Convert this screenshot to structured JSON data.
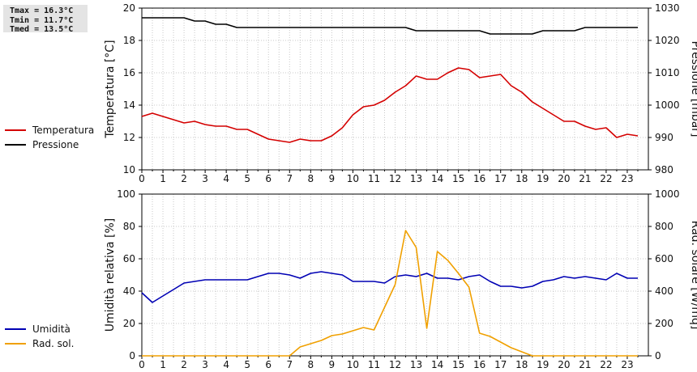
{
  "stats": {
    "tmax": "Tmax = 16.3°C",
    "tmin": "Tmin = 11.7°C",
    "tmed": "Tmed = 13.5°C"
  },
  "colors": {
    "temperature": "#d40000",
    "pressure": "#000000",
    "humidity": "#0000b4",
    "solar": "#f0a000",
    "grid": "#c8c8c8"
  },
  "legend_top": [
    {
      "label": "Temperatura",
      "color": "#d40000"
    },
    {
      "label": "Pressione",
      "color": "#000000"
    }
  ],
  "legend_bottom": [
    {
      "label": "Umidità",
      "color": "#0000b4"
    },
    {
      "label": "Rad. sol.",
      "color": "#f0a000"
    }
  ],
  "chart_data": [
    {
      "type": "line",
      "ylabel": "Temperatura [°C]",
      "y2label": "Pressione [mbar]",
      "xlim": [
        0,
        24
      ],
      "ylim": [
        10,
        20
      ],
      "y2lim": [
        980,
        1030
      ],
      "x_ticks": [
        "0",
        "1",
        "2",
        "3",
        "4",
        "5",
        "6",
        "7",
        "8",
        "9",
        "10",
        "11",
        "12",
        "13",
        "14",
        "15",
        "16",
        "17",
        "18",
        "19",
        "20",
        "21",
        "22",
        "23"
      ],
      "y_ticks": [
        "10",
        "12",
        "14",
        "16",
        "18",
        "20"
      ],
      "y2_ticks": [
        "980",
        "990",
        "1000",
        "1010",
        "1020",
        "1030"
      ],
      "grid": true,
      "series": [
        {
          "name": "Temperatura",
          "axis": "left",
          "x": [
            0,
            0.5,
            1,
            1.5,
            2,
            2.5,
            3,
            3.5,
            4,
            4.5,
            5,
            5.5,
            6,
            6.5,
            7,
            7.5,
            8,
            8.5,
            9,
            9.5,
            10,
            10.5,
            11,
            11.5,
            12,
            12.5,
            13,
            13.5,
            14,
            14.5,
            15,
            15.5,
            16,
            16.5,
            17,
            17.5,
            18,
            18.5,
            19,
            19.5,
            20,
            20.5,
            21,
            21.5,
            22,
            22.5,
            23,
            23.5
          ],
          "y": [
            13.3,
            13.5,
            13.3,
            13.1,
            12.9,
            13.0,
            12.8,
            12.7,
            12.7,
            12.5,
            12.5,
            12.2,
            11.9,
            11.8,
            11.7,
            11.9,
            11.8,
            11.8,
            12.1,
            12.6,
            13.4,
            13.9,
            14.0,
            14.3,
            14.8,
            15.2,
            15.8,
            15.6,
            15.6,
            16.0,
            16.3,
            16.2,
            15.7,
            15.8,
            15.9,
            15.2,
            14.8,
            14.2,
            13.8,
            13.4,
            13.0,
            13.0,
            12.7,
            12.5,
            12.6,
            12.0,
            12.2,
            12.1
          ]
        },
        {
          "name": "Pressione",
          "axis": "right",
          "x": [
            0,
            1,
            2,
            2.5,
            3,
            3.5,
            4,
            4.5,
            5,
            12.5,
            13,
            15,
            16,
            16.5,
            18,
            18.5,
            19,
            20,
            20.5,
            21,
            23.5
          ],
          "y": [
            1027,
            1027,
            1027,
            1026,
            1026,
            1025,
            1025,
            1024,
            1024,
            1024,
            1023,
            1023,
            1023,
            1022,
            1022,
            1022,
            1023,
            1023,
            1023,
            1024,
            1024
          ]
        }
      ]
    },
    {
      "type": "line",
      "ylabel": "Umidità relativa [%]",
      "y2label": "Rad. solare [W/mq]",
      "xlim": [
        0,
        24
      ],
      "ylim": [
        0,
        100
      ],
      "y2lim": [
        0,
        1000
      ],
      "x_ticks": [
        "0",
        "1",
        "2",
        "3",
        "4",
        "5",
        "6",
        "7",
        "8",
        "9",
        "10",
        "11",
        "12",
        "13",
        "14",
        "15",
        "16",
        "17",
        "18",
        "19",
        "20",
        "21",
        "22",
        "23"
      ],
      "y_ticks": [
        "0",
        "20",
        "40",
        "60",
        "80",
        "100"
      ],
      "y2_ticks": [
        "0",
        "200",
        "400",
        "600",
        "800",
        "1000"
      ],
      "grid": true,
      "series": [
        {
          "name": "Umidità",
          "axis": "left",
          "x": [
            0,
            0.5,
            1,
            1.5,
            2,
            2.5,
            3,
            3.5,
            4,
            4.5,
            5,
            5.5,
            6,
            6.5,
            7,
            7.5,
            8,
            8.5,
            9,
            9.5,
            10,
            10.5,
            11,
            11.5,
            12,
            12.5,
            13,
            13.5,
            14,
            14.5,
            15,
            15.5,
            16,
            16.5,
            17,
            17.5,
            18,
            18.5,
            19,
            19.5,
            20,
            20.5,
            21,
            21.5,
            22,
            22.5,
            23,
            23.5
          ],
          "y": [
            39,
            33,
            37,
            41,
            45,
            46,
            47,
            47,
            47,
            47,
            47,
            49,
            51,
            51,
            50,
            48,
            51,
            52,
            51,
            50,
            46,
            46,
            46,
            45,
            49,
            50,
            49,
            51,
            48,
            48,
            47,
            49,
            50,
            46,
            43,
            43,
            42,
            43,
            46,
            47,
            49,
            48,
            49,
            48,
            47,
            51,
            48,
            48
          ]
        },
        {
          "name": "Rad. sol.",
          "axis": "right",
          "x": [
            0,
            1,
            2,
            3,
            4,
            5,
            6,
            6.5,
            7,
            7.5,
            8,
            8.5,
            9,
            9.5,
            10,
            10.5,
            11,
            11.5,
            12,
            12.5,
            13,
            13.5,
            14,
            14.5,
            15,
            15.5,
            16,
            16.5,
            17,
            17.5,
            18,
            18.5,
            19,
            20,
            21,
            22,
            23,
            23.5
          ],
          "y": [
            0,
            0,
            0,
            0,
            0,
            0,
            0,
            0,
            0,
            55,
            75,
            95,
            125,
            135,
            155,
            175,
            160,
            300,
            440,
            775,
            670,
            170,
            645,
            590,
            510,
            425,
            140,
            120,
            85,
            50,
            25,
            0,
            0,
            0,
            0,
            0,
            0,
            0
          ]
        }
      ]
    }
  ]
}
